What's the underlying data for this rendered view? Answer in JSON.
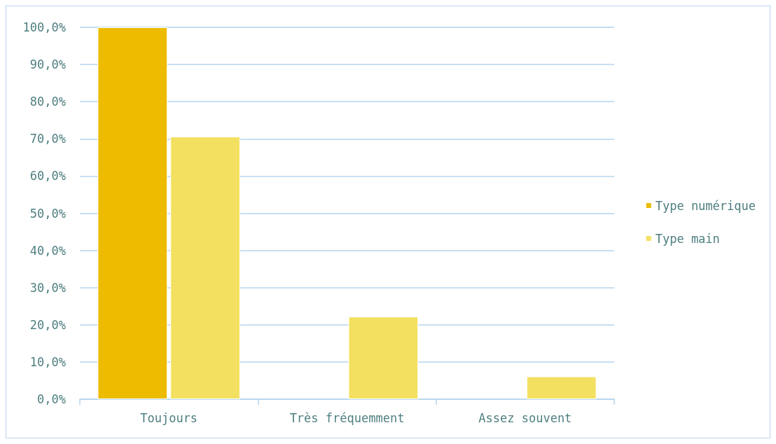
{
  "chart_data": {
    "type": "bar",
    "categories": [
      "Toujours",
      "Très fréquemment",
      "Assez souvent"
    ],
    "series": [
      {
        "name": "Type numérique",
        "color": "#edbb00",
        "values": [
          100,
          null,
          null
        ]
      },
      {
        "name": "Type main",
        "color": "#f3e060",
        "values": [
          70.6,
          22.2,
          6.1
        ]
      }
    ],
    "ylim": [
      0,
      100
    ],
    "yticks": [
      {
        "value": 0,
        "label": "0,0%"
      },
      {
        "value": 10,
        "label": "10,0%"
      },
      {
        "value": 20,
        "label": "20,0%"
      },
      {
        "value": 30,
        "label": "30,0%"
      },
      {
        "value": 40,
        "label": "40,0%"
      },
      {
        "value": 50,
        "label": "50,0%"
      },
      {
        "value": 60,
        "label": "60,0%"
      },
      {
        "value": 70,
        "label": "70,0%"
      },
      {
        "value": 80,
        "label": "80,0%"
      },
      {
        "value": 90,
        "label": "90,0%"
      },
      {
        "value": 100,
        "label": "100,0%"
      }
    ],
    "grid": "y",
    "legend": "right"
  }
}
